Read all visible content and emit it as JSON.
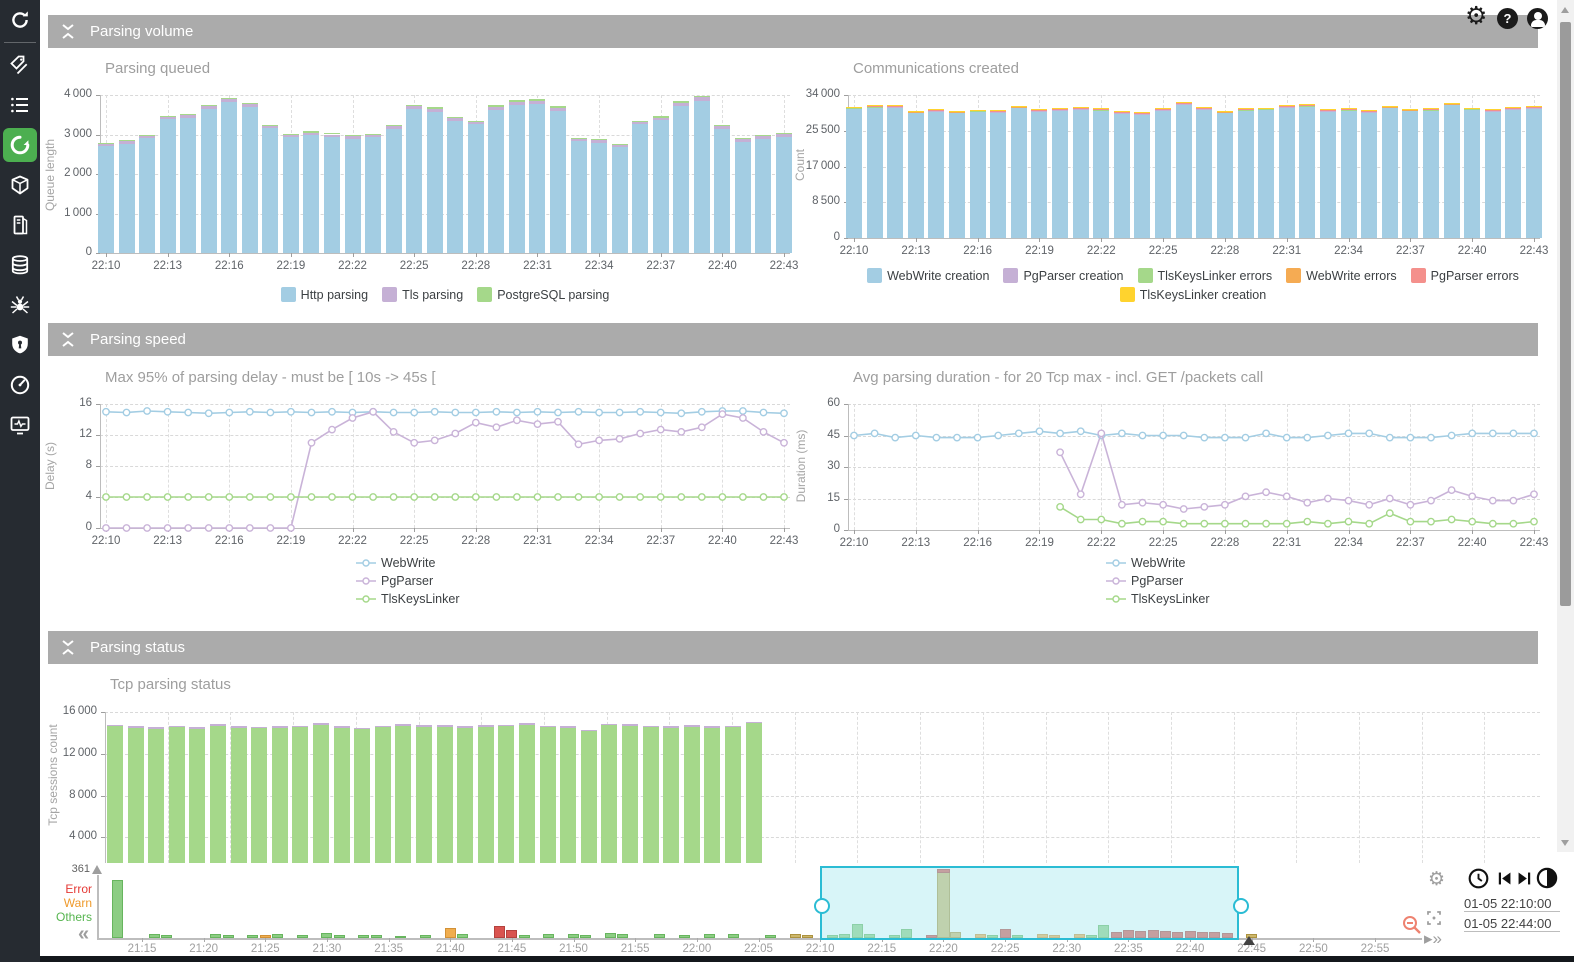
{
  "app": {
    "topbar": {
      "help_glyph": "?"
    }
  },
  "sidebar": {
    "items": [
      {
        "icon": "refresh"
      },
      {
        "icon": "tags"
      },
      {
        "icon": "list"
      },
      {
        "icon": "parsing",
        "active": true
      },
      {
        "icon": "cube"
      },
      {
        "icon": "server"
      },
      {
        "icon": "database"
      },
      {
        "icon": "spider"
      },
      {
        "icon": "shield"
      },
      {
        "icon": "gauge"
      },
      {
        "icon": "monitor"
      }
    ]
  },
  "panels": [
    {
      "title": "Parsing volume"
    },
    {
      "title": "Parsing speed"
    },
    {
      "title": "Parsing status"
    }
  ],
  "chart_data": [
    {
      "id": "parsing_queued",
      "type": "bar",
      "stacked": true,
      "title": "Parsing queued",
      "ylabel": "Queue length",
      "ylim": [
        0,
        4000
      ],
      "yticks": [
        {
          "v": 0,
          "label": "0"
        },
        {
          "v": 1000,
          "label": "1 000"
        },
        {
          "v": 2000,
          "label": "2 000"
        },
        {
          "v": 3000,
          "label": "3 000"
        },
        {
          "v": 4000,
          "label": "4 000"
        }
      ],
      "categories": [
        "22:10",
        "22:11",
        "22:12",
        "22:13",
        "22:14",
        "22:15",
        "22:16",
        "22:17",
        "22:18",
        "22:19",
        "22:20",
        "22:21",
        "22:22",
        "22:23",
        "22:24",
        "22:25",
        "22:26",
        "22:27",
        "22:28",
        "22:29",
        "22:30",
        "22:31",
        "22:32",
        "22:33",
        "22:34",
        "22:35",
        "22:36",
        "22:37",
        "22:38",
        "22:39",
        "22:40",
        "22:41",
        "22:42",
        "22:43"
      ],
      "xtick_labels": [
        "22:10",
        "22:13",
        "22:16",
        "22:19",
        "22:22",
        "22:25",
        "22:28",
        "22:31",
        "22:34",
        "22:37",
        "22:40",
        "22:43"
      ],
      "series": [
        {
          "name": "Http parsing",
          "color": "#a3cde3",
          "values": [
            2715,
            2770,
            2920,
            3385,
            3430,
            3650,
            3820,
            3690,
            3165,
            2935,
            2985,
            2940,
            2895,
            2930,
            3140,
            3640,
            3580,
            3340,
            3260,
            3625,
            3755,
            3780,
            3600,
            2830,
            2790,
            2690,
            3255,
            3360,
            3730,
            3860,
            3140,
            2815,
            2895,
            2945
          ]
        },
        {
          "name": "Tls parsing",
          "color": "#c5b0d5",
          "values": [
            60,
            65,
            60,
            70,
            70,
            75,
            80,
            75,
            65,
            60,
            65,
            60,
            60,
            60,
            65,
            75,
            75,
            70,
            65,
            75,
            80,
            80,
            75,
            60,
            60,
            55,
            65,
            70,
            80,
            80,
            65,
            60,
            60,
            60
          ]
        },
        {
          "name": "PostgreSQL parsing",
          "color": "#a5d88a",
          "values": [
            15,
            15,
            20,
            20,
            20,
            25,
            30,
            25,
            20,
            30,
            35,
            40,
            30,
            25,
            30,
            35,
            30,
            25,
            25,
            35,
            40,
            40,
            35,
            25,
            25,
            20,
            30,
            30,
            40,
            45,
            30,
            25,
            30,
            35
          ]
        }
      ]
    },
    {
      "id": "communications_created",
      "type": "bar",
      "stacked": true,
      "title": "Communications created",
      "ylabel": "Count",
      "ylim": [
        0,
        34000
      ],
      "yticks": [
        {
          "v": 0,
          "label": "0"
        },
        {
          "v": 8500,
          "label": "8 500"
        },
        {
          "v": 17000,
          "label": "17 000"
        },
        {
          "v": 25500,
          "label": "25 500"
        },
        {
          "v": 34000,
          "label": "34 000"
        }
      ],
      "categories": [
        "22:10",
        "22:11",
        "22:12",
        "22:13",
        "22:14",
        "22:15",
        "22:16",
        "22:17",
        "22:18",
        "22:19",
        "22:20",
        "22:21",
        "22:22",
        "22:23",
        "22:24",
        "22:25",
        "22:26",
        "22:27",
        "22:28",
        "22:29",
        "22:30",
        "22:31",
        "22:32",
        "22:33",
        "22:34",
        "22:35",
        "22:36",
        "22:37",
        "22:38",
        "22:39",
        "22:40",
        "22:41",
        "22:42",
        "22:43"
      ],
      "xtick_labels": [
        "22:10",
        "22:13",
        "22:16",
        "22:19",
        "22:22",
        "22:25",
        "22:28",
        "22:31",
        "22:34",
        "22:37",
        "22:40",
        "22:43"
      ],
      "series": [
        {
          "name": "WebWrite creation",
          "color": "#a3cde3",
          "values": [
            30700,
            31000,
            31050,
            29700,
            30100,
            29700,
            30000,
            29900,
            30900,
            30100,
            30400,
            30600,
            30300,
            29600,
            29400,
            30400,
            31800,
            30600,
            29700,
            30300,
            30500,
            31100,
            31250,
            30100,
            30300,
            29900,
            30900,
            30200,
            30300,
            31600,
            30500,
            30100,
            30600,
            30800
          ]
        },
        {
          "name": "PgParser creation",
          "color": "#c5b0d5",
          "constant": 150
        },
        {
          "name": "TlsKeysLinker errors",
          "color": "#a5d88a",
          "constant": 100
        },
        {
          "name": "WebWrite errors",
          "color": "#f5ab53",
          "constant": 80
        },
        {
          "name": "PgParser errors",
          "color": "#f4908c",
          "constant": 60
        },
        {
          "name": "TlsKeysLinker creation",
          "color": "#ffd32e",
          "constant": 120
        }
      ]
    },
    {
      "id": "parsing_delay",
      "type": "line",
      "title": "Max 95% of parsing delay - must be [ 10s -> 45s [",
      "ylabel": "Delay (s)",
      "ylim": [
        0,
        16
      ],
      "yticks": [
        {
          "v": 0,
          "label": "0"
        },
        {
          "v": 4,
          "label": "4"
        },
        {
          "v": 8,
          "label": "8"
        },
        {
          "v": 12,
          "label": "12"
        },
        {
          "v": 16,
          "label": "16"
        }
      ],
      "categories": [
        "22:10",
        "22:11",
        "22:12",
        "22:13",
        "22:14",
        "22:15",
        "22:16",
        "22:17",
        "22:18",
        "22:19",
        "22:20",
        "22:21",
        "22:22",
        "22:23",
        "22:24",
        "22:25",
        "22:26",
        "22:27",
        "22:28",
        "22:29",
        "22:30",
        "22:31",
        "22:32",
        "22:33",
        "22:34",
        "22:35",
        "22:36",
        "22:37",
        "22:38",
        "22:39",
        "22:40",
        "22:41",
        "22:42",
        "22:43"
      ],
      "xtick_labels": [
        "22:10",
        "22:13",
        "22:16",
        "22:19",
        "22:22",
        "22:25",
        "22:28",
        "22:31",
        "22:34",
        "22:37",
        "22:40",
        "22:43"
      ],
      "series": [
        {
          "name": "WebWrite",
          "color": "#a3cde3",
          "values": [
            15,
            14.9,
            15.1,
            15,
            14.9,
            14.8,
            14.9,
            15,
            14.9,
            15,
            14.9,
            15,
            14.9,
            15,
            14.9,
            14.9,
            15,
            14.9,
            14.9,
            15,
            14.9,
            15,
            14.9,
            15,
            14.9,
            14.9,
            15,
            14.9,
            14.8,
            15,
            15.1,
            15.1,
            14.9,
            14.8
          ]
        },
        {
          "name": "PgParser",
          "color": "#c9b3d8",
          "values": [
            0,
            0,
            0,
            0,
            0,
            0,
            0,
            0,
            0,
            0,
            11,
            12.7,
            14.2,
            15,
            12.4,
            11,
            11.3,
            12.2,
            13.6,
            13,
            13.9,
            13.4,
            13.7,
            10.8,
            11.3,
            11.5,
            12.2,
            12.7,
            12.4,
            13,
            14.7,
            14.2,
            12.4,
            11
          ]
        },
        {
          "name": "TlsKeysLinker",
          "color": "#a5d88a",
          "constant": 4
        }
      ]
    },
    {
      "id": "parsing_duration",
      "type": "line",
      "title": "Avg parsing duration - for 20 Tcp max - incl. GET /packets call",
      "ylabel": "Duration (ms)",
      "ylim": [
        0,
        60
      ],
      "yticks": [
        {
          "v": 0,
          "label": "0"
        },
        {
          "v": 15,
          "label": "15"
        },
        {
          "v": 30,
          "label": "30"
        },
        {
          "v": 45,
          "label": "45"
        },
        {
          "v": 60,
          "label": "60"
        }
      ],
      "categories": [
        "22:10",
        "22:11",
        "22:12",
        "22:13",
        "22:14",
        "22:15",
        "22:16",
        "22:17",
        "22:18",
        "22:19",
        "22:20",
        "22:21",
        "22:22",
        "22:23",
        "22:24",
        "22:25",
        "22:26",
        "22:27",
        "22:28",
        "22:29",
        "22:30",
        "22:31",
        "22:32",
        "22:33",
        "22:34",
        "22:35",
        "22:36",
        "22:37",
        "22:38",
        "22:39",
        "22:40",
        "22:41",
        "22:42",
        "22:43"
      ],
      "xtick_labels": [
        "22:10",
        "22:13",
        "22:16",
        "22:19",
        "22:22",
        "22:25",
        "22:28",
        "22:31",
        "22:34",
        "22:37",
        "22:40",
        "22:43"
      ],
      "series": [
        {
          "name": "WebWrite",
          "color": "#a3cde3",
          "values": [
            45,
            46,
            44,
            45,
            44,
            44,
            44,
            45,
            46,
            47,
            46,
            47,
            45,
            46,
            45,
            45,
            45,
            44,
            44,
            44,
            46,
            44,
            44,
            45,
            46,
            46,
            44,
            44,
            44,
            45,
            46,
            46,
            46,
            46
          ]
        },
        {
          "name": "PgParser",
          "color": "#c9b3d8",
          "values": [
            null,
            null,
            null,
            null,
            null,
            null,
            null,
            null,
            null,
            null,
            37,
            17,
            46,
            12,
            13,
            12,
            10,
            11,
            12,
            16,
            18,
            16,
            13,
            15,
            14,
            12,
            15,
            12,
            14,
            19,
            16,
            14,
            14,
            17
          ]
        },
        {
          "name": "TlsKeysLinker",
          "color": "#a5d88a",
          "values": [
            null,
            null,
            null,
            null,
            null,
            null,
            null,
            null,
            null,
            null,
            11,
            5,
            5,
            3,
            4,
            4,
            3,
            3,
            3,
            3,
            3,
            3,
            4,
            3,
            4,
            3,
            8,
            4,
            4,
            5,
            4,
            3,
            3,
            4
          ]
        }
      ]
    },
    {
      "id": "tcp_parsing_status",
      "type": "bar",
      "stacked": true,
      "title": "Tcp parsing status",
      "ylabel": "Tcp sessions count",
      "ylim": [
        0,
        16000
      ],
      "yticks": [
        {
          "v": 4000,
          "label": "4 000"
        },
        {
          "v": 8000,
          "label": "8 000"
        },
        {
          "v": 12000,
          "label": "12 000"
        },
        {
          "v": 16000,
          "label": "16 000"
        }
      ],
      "categories": [],
      "xtick_labels": [],
      "series": [
        {
          "name": "",
          "color": "#a5d88a",
          "values": [
            14650,
            14500,
            14400,
            14550,
            14400,
            14700,
            14500,
            14450,
            14500,
            14550,
            14800,
            14500,
            14350,
            14550,
            14700,
            14600,
            14600,
            14500,
            14600,
            14650,
            14800,
            14550,
            14500,
            14150,
            14750,
            14700,
            14550,
            14500,
            14600,
            14500,
            14550,
            14900
          ]
        },
        {
          "name": "",
          "color": "#c5b0d5",
          "constant": 130
        }
      ]
    }
  ],
  "timeline": {
    "y_max_label": "361",
    "axis_labels": [
      {
        "text": "Error",
        "color": "#e53935"
      },
      {
        "text": "Warn",
        "color": "#ef9a2c"
      },
      {
        "text": "Others",
        "color": "#56b54f"
      }
    ],
    "ticks": [
      "21:15",
      "21:20",
      "21:25",
      "21:30",
      "21:35",
      "21:40",
      "21:45",
      "21:50",
      "21:55",
      "22:00",
      "22:05",
      "22:10",
      "22:15",
      "22:20",
      "22:25",
      "22:30",
      "22:35",
      "22:40",
      "22:45",
      "22:50",
      "22:55"
    ],
    "selection": {
      "from": "22:10",
      "to": "22:44"
    },
    "datetime_from": "01-05 22:10:00",
    "datetime_to": "01-05 22:44:00",
    "bars": [
      [
        "21:13",
        290,
        "g"
      ],
      [
        "21:16",
        18,
        "g"
      ],
      [
        "21:17",
        14,
        "g"
      ],
      [
        "21:21",
        20,
        "g"
      ],
      [
        "21:22",
        14,
        "g"
      ],
      [
        "21:24",
        15,
        "g"
      ],
      [
        "21:25",
        14,
        "o"
      ],
      [
        "21:26",
        18,
        "g"
      ],
      [
        "21:28",
        14,
        "g"
      ],
      [
        "21:30",
        24,
        "g"
      ],
      [
        "21:31",
        14,
        "g"
      ],
      [
        "21:33",
        15,
        "g"
      ],
      [
        "21:34",
        15,
        "g"
      ],
      [
        "21:36",
        12,
        "g"
      ],
      [
        "21:38",
        14,
        "g"
      ],
      [
        "21:40",
        50,
        "o"
      ],
      [
        "21:41",
        18,
        "g"
      ],
      [
        "21:44",
        62,
        "r"
      ],
      [
        "21:45",
        40,
        "r"
      ],
      [
        "21:46",
        14,
        "g"
      ],
      [
        "21:48",
        18,
        "g"
      ],
      [
        "21:50",
        20,
        "g"
      ],
      [
        "21:51",
        14,
        "g"
      ],
      [
        "21:53",
        24,
        "g"
      ],
      [
        "21:54",
        18,
        "g"
      ],
      [
        "21:57",
        18,
        "g"
      ],
      [
        "21:59",
        14,
        "g"
      ],
      [
        "22:01",
        18,
        "g"
      ],
      [
        "22:03",
        18,
        "g"
      ],
      [
        "22:06",
        14,
        "g"
      ],
      [
        "22:08",
        20,
        "y"
      ],
      [
        "22:09",
        14,
        "y"
      ],
      [
        "22:11",
        14,
        "g"
      ],
      [
        "22:12",
        18,
        "g"
      ],
      [
        "22:13",
        70,
        "g"
      ],
      [
        "22:14",
        20,
        "g"
      ],
      [
        "22:16",
        14,
        "g"
      ],
      [
        "22:17",
        45,
        "g"
      ],
      [
        "22:19",
        16,
        "r"
      ],
      [
        "22:20",
        345,
        "y",
        1
      ],
      [
        "22:21",
        30,
        "y"
      ],
      [
        "22:23",
        20,
        "o"
      ],
      [
        "22:24",
        14,
        "g"
      ],
      [
        "22:25",
        45,
        "r"
      ],
      [
        "22:26",
        14,
        "g"
      ],
      [
        "22:28",
        20,
        "o"
      ],
      [
        "22:29",
        16,
        "o"
      ],
      [
        "22:31",
        18,
        "o"
      ],
      [
        "22:32",
        14,
        "g"
      ],
      [
        "22:33",
        65,
        "g"
      ],
      [
        "22:34",
        30,
        "r"
      ],
      [
        "22:35",
        40,
        "r"
      ],
      [
        "22:36",
        35,
        "r"
      ],
      [
        "22:37",
        40,
        "r"
      ],
      [
        "22:38",
        35,
        "r"
      ],
      [
        "22:39",
        32,
        "r"
      ],
      [
        "22:40",
        35,
        "r"
      ],
      [
        "22:41",
        30,
        "r"
      ],
      [
        "22:42",
        28,
        "r"
      ],
      [
        "22:43",
        26,
        "r"
      ],
      [
        "22:45",
        20,
        "y"
      ]
    ]
  },
  "colors": {
    "accent_green": "#4caf50",
    "selection_cyan": "#2bbcd4",
    "tl_green": "#8ccd83",
    "tl_green_border": "#67b55e",
    "tl_orange": "#f0ad4e",
    "tl_orange_border": "#d29136",
    "tl_red": "#d9534f",
    "tl_red_border": "#b4423e",
    "tl_gold": "#cdb76b",
    "tl_gold_border": "#ac923f"
  }
}
